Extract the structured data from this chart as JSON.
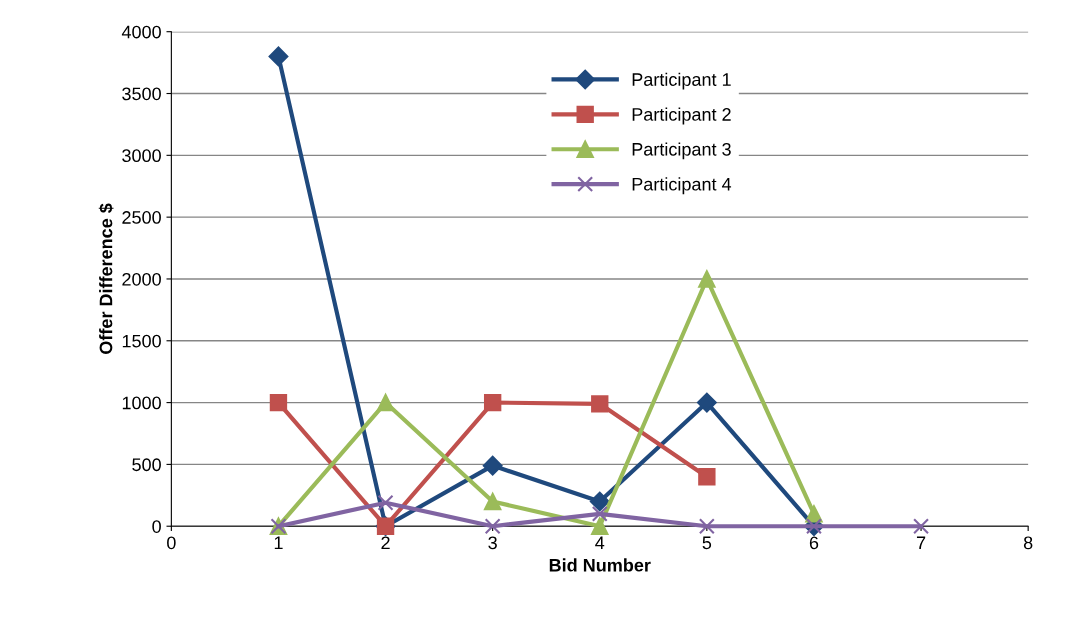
{
  "chart_data": {
    "type": "line",
    "xlabel": "Bid Number",
    "ylabel": "Offer Difference $",
    "xlim": [
      0,
      8
    ],
    "xticks": [
      0,
      1,
      2,
      3,
      4,
      5,
      6,
      7,
      8
    ],
    "ylim": [
      0,
      4000
    ],
    "yticks": [
      0,
      500,
      1000,
      1500,
      2000,
      2500,
      3000,
      3500,
      4000
    ],
    "grid": "y",
    "legend": "top",
    "line_style": "solid",
    "series": [
      {
        "name": "Participant 1",
        "color": "#1f497d",
        "marker": "diamond",
        "x": [
          1,
          2,
          3,
          4,
          5,
          6
        ],
        "values": [
          3800,
          0,
          490,
          200,
          1000,
          0
        ]
      },
      {
        "name": "Participant 2",
        "color": "#c0504d",
        "marker": "square",
        "x": [
          1,
          2,
          3,
          4,
          5
        ],
        "values": [
          1000,
          0,
          1000,
          990,
          400
        ]
      },
      {
        "name": "Participant 3",
        "color": "#9bbb59",
        "marker": "triangle",
        "x": [
          1,
          2,
          3,
          4,
          5,
          6
        ],
        "values": [
          0,
          1000,
          200,
          0,
          2000,
          100
        ]
      },
      {
        "name": "Participant 4",
        "color": "#8064a2",
        "marker": "cross",
        "x": [
          1,
          2,
          3,
          4,
          5,
          6,
          7
        ],
        "values": [
          0,
          190,
          0,
          100,
          0,
          0,
          0
        ]
      }
    ]
  }
}
